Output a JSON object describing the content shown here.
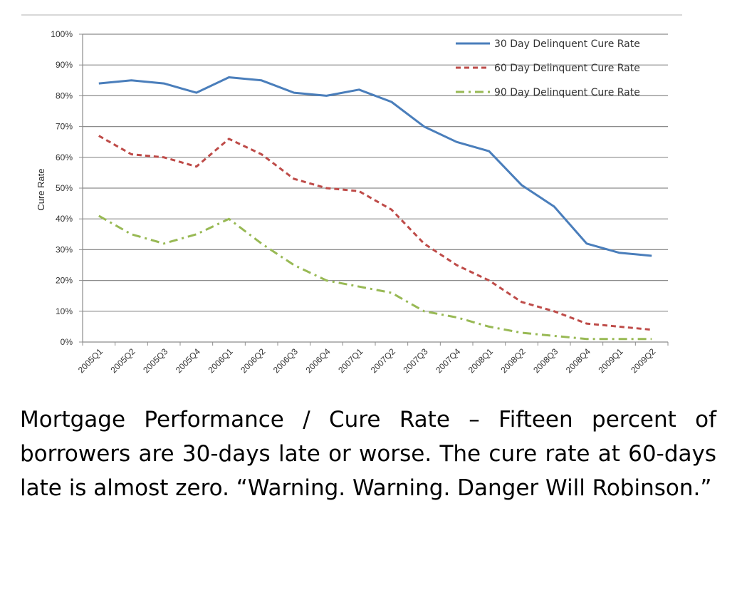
{
  "chart_data": {
    "type": "line",
    "title": "",
    "xlabel": "",
    "ylabel": "Cure Rate",
    "ylim": [
      0,
      100
    ],
    "yticks": [
      "0%",
      "10%",
      "20%",
      "30%",
      "40%",
      "50%",
      "60%",
      "70%",
      "80%",
      "90%",
      "100%"
    ],
    "grid": true,
    "legend_position": "top-right",
    "categories": [
      "2005Q1",
      "2005Q2",
      "2005Q3",
      "2005Q4",
      "2006Q1",
      "2006Q2",
      "2006Q3",
      "2006Q4",
      "2007Q1",
      "2007Q2",
      "2007Q3",
      "2007Q4",
      "2008Q1",
      "2008Q2",
      "2008Q3",
      "2008Q4",
      "2009Q1",
      "2009Q2"
    ],
    "series": [
      {
        "name": "30 Day Delinquent Cure Rate",
        "color": "#4a7ebb",
        "style": "solid",
        "values": [
          84,
          85,
          84,
          81,
          86,
          85,
          81,
          80,
          82,
          78,
          70,
          65,
          62,
          51,
          44,
          32,
          29,
          28
        ]
      },
      {
        "name": "60 Day Delinquent Cure Rate",
        "color": "#be4b48",
        "style": "dash",
        "values": [
          67,
          61,
          60,
          57,
          66,
          61,
          53,
          50,
          49,
          43,
          32,
          25,
          20,
          13,
          10,
          6,
          5,
          4
        ]
      },
      {
        "name": "90 Day Delinquent Cure Rate",
        "color": "#98b954",
        "style": "dashdot",
        "values": [
          41,
          35,
          32,
          35,
          40,
          32,
          25,
          20,
          18,
          16,
          10,
          8,
          5,
          3,
          2,
          1,
          1,
          1
        ]
      }
    ]
  },
  "caption": "Mortgage Performance / Cure Rate – Fifteen percent of borrowers are 30-days late or worse. The cure rate at 60-days late is almost zero. “Warning. Warning. Danger Will Robinson.”"
}
